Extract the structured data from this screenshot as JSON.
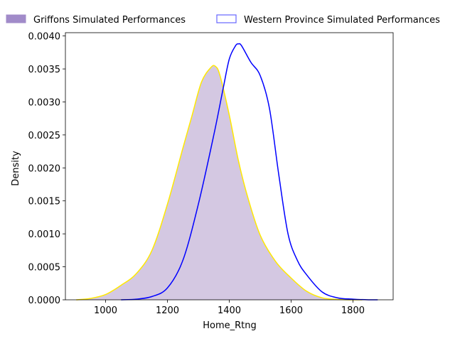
{
  "chart_data": {
    "type": "area",
    "xlabel": "Home_Rtng",
    "ylabel": "Density",
    "xlim": [
      870,
      1930
    ],
    "ylim": [
      0,
      0.00405
    ],
    "x_ticks": [
      1000,
      1200,
      1400,
      1600,
      1800
    ],
    "x_tick_labels": [
      "1000",
      "1200",
      "1400",
      "1600",
      "1800"
    ],
    "y_ticks": [
      0,
      0.0005,
      0.001,
      0.0015,
      0.002,
      0.0025,
      0.003,
      0.0035,
      0.004
    ],
    "y_tick_labels": [
      "0.0000",
      "0.0005",
      "0.0010",
      "0.0015",
      "0.0020",
      "0.0025",
      "0.0030",
      "0.0035",
      "0.0040"
    ],
    "grid": false,
    "legend_position": "top, outside plot",
    "series": [
      {
        "name": "Griffons Simulated Performances",
        "fill": "#d4c8e2",
        "legend_fill": "#a18bc9",
        "line": "#ffe800",
        "x": [
          905,
          950,
          1000,
          1050,
          1100,
          1150,
          1200,
          1250,
          1280,
          1310,
          1340,
          1355,
          1370,
          1400,
          1430,
          1460,
          1500,
          1550,
          1600,
          1650,
          1700,
          1750,
          1800,
          1830
        ],
        "y": [
          0.0,
          2e-05,
          8e-05,
          0.00022,
          0.0004,
          0.00075,
          0.00145,
          0.0023,
          0.0028,
          0.0033,
          0.00352,
          0.00354,
          0.0034,
          0.0028,
          0.0021,
          0.00155,
          0.00098,
          0.00058,
          0.00033,
          0.00013,
          3e-05,
          5e-06,
          0.0,
          0.0
        ]
      },
      {
        "name": "Western Province Simulated Performances",
        "line": "#0000ff",
        "x": [
          1050,
          1100,
          1150,
          1200,
          1250,
          1300,
          1350,
          1380,
          1400,
          1420,
          1430,
          1440,
          1470,
          1500,
          1530,
          1560,
          1590,
          1620,
          1650,
          1700,
          1750,
          1800,
          1850,
          1880
        ],
        "y": [
          0.0,
          1e-05,
          5e-05,
          0.00018,
          0.0006,
          0.00145,
          0.0025,
          0.0032,
          0.00365,
          0.00385,
          0.00388,
          0.00385,
          0.0036,
          0.0034,
          0.0029,
          0.0019,
          0.001,
          0.0006,
          0.00038,
          0.00012,
          3e-05,
          1e-05,
          0.0,
          0.0
        ]
      }
    ]
  }
}
